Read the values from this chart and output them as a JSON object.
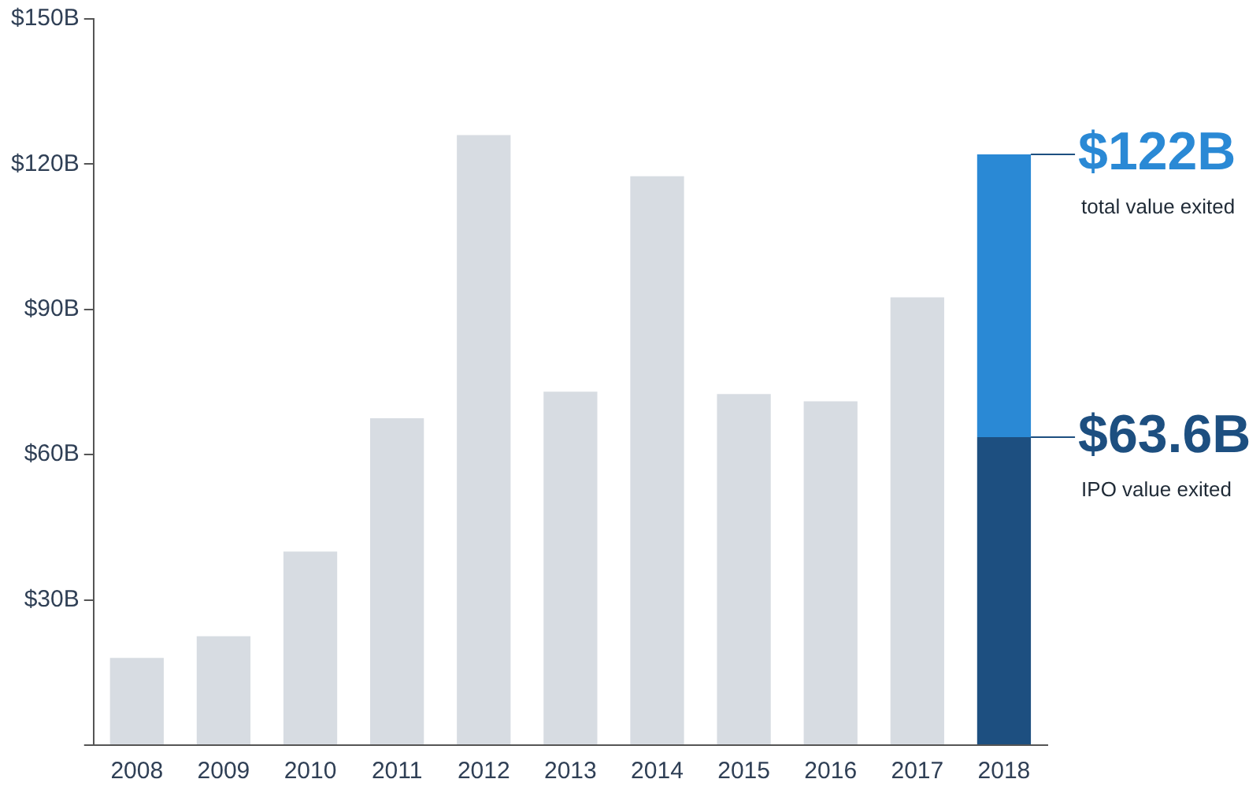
{
  "chart_data": {
    "type": "bar",
    "stacked": true,
    "categories": [
      "2008",
      "2009",
      "2010",
      "2011",
      "2012",
      "2013",
      "2014",
      "2015",
      "2016",
      "2017",
      "2018"
    ],
    "series": [
      {
        "colors": [
          "#d7dce2",
          "#d7dce2",
          "#d7dce2",
          "#d7dce2",
          "#d7dce2",
          "#d7dce2",
          "#d7dce2",
          "#d7dce2",
          "#d7dce2",
          "#d7dce2",
          "#1d4f80"
        ],
        "values": [
          18,
          22.5,
          40,
          67.5,
          126,
          73,
          117.5,
          72.5,
          71,
          92.5,
          63.6
        ]
      },
      {
        "color": "#2a89d5",
        "values": [
          null,
          null,
          null,
          null,
          null,
          null,
          null,
          null,
          null,
          null,
          58.4
        ]
      }
    ],
    "ylim": [
      0,
      150
    ],
    "yticks": [
      {
        "value": 0,
        "label": null
      },
      {
        "value": 30,
        "label": "$30B"
      },
      {
        "value": 60,
        "label": "$60B"
      },
      {
        "value": 90,
        "label": "$90B"
      },
      {
        "value": 120,
        "label": "$120B"
      },
      {
        "value": 150,
        "label": "$150B"
      }
    ],
    "grid": false,
    "legend": false,
    "annotations": [
      {
        "text": "$122B",
        "x": "2018",
        "y": 122
      },
      "total value exited",
      {
        "text": "$63.6B",
        "x": "2018",
        "y": 63.6
      },
      "IPO value exited"
    ]
  }
}
